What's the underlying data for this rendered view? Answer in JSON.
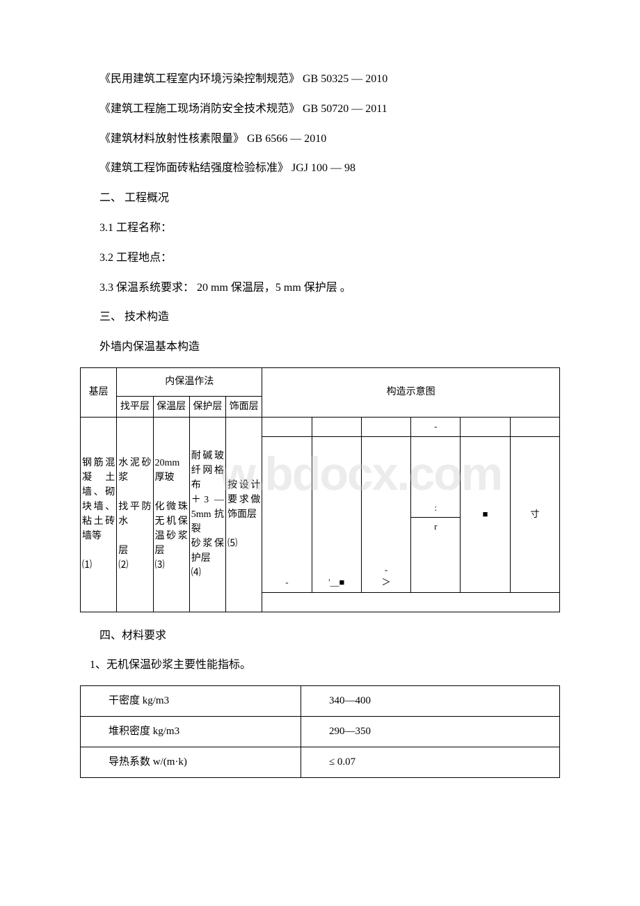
{
  "lines": {
    "l1": "《民用建筑工程室内环境污染控制规范》 GB 50325 — 2010",
    "l2": "《建筑工程施工现场消防安全技术规范》 GB 50720 — 2011",
    "l3": "《建筑材料放射性核素限量》 GB 6566 — 2010",
    "l4": "《建筑工程饰面砖粘结强度检验标准》 JGJ 100 — 98",
    "l5": "二、 工程概况",
    "l6": "3.1 工程名称：",
    "l7": "3.2 工程地点：",
    "l8": "3.3 保温系统要求： 20 mm 保温层，5 mm 保护层 。",
    "l9": "三、 技术构造",
    "l10": "外墙内保温基本构造",
    "l11": "四、材料要求",
    "l12": "1、无机保温砂浆主要性能指标。"
  },
  "structTable": {
    "hdr1": "基层",
    "hdr2": "内保温作法",
    "hdr3": "构造示意图",
    "sub1": "找平层",
    "sub2": "保温层",
    "sub3": "保护层",
    "sub4": "饰面层",
    "r1c1": "钢筋混凝土墙、砌块墙、粘土砖墙等\n\n⑴",
    "r1c2": "水泥砂浆\n\n找平防水\n\n层\n⑵",
    "r1c3": "20mm厚玻\n\n化微珠无机保温砂浆层\n⑶",
    "r1c4": "耐碱玻纤网格布\n＋3 — 5mm抗裂\n砂浆保护层\n⑷",
    "r1c5": "按设计要求做饰面层\n\n⑸",
    "diag": {
      "dash1": "-",
      "dash2": "-",
      "dash3": "-",
      "mark1": "'__■",
      "mark2": "＞",
      "mark3": ":",
      "mark4": "r",
      "mark5": "■",
      "mark6": "寸"
    }
  },
  "propsTable": {
    "r1k": "干密度 kg/m3",
    "r1v": "340—400",
    "r2k": "堆积密度 kg/m3",
    "r2v": "290—350",
    "r3k": "导热系数 w/(m·k)",
    "r3v": "≤ 0.07"
  },
  "watermark": "w.bdocx.com",
  "colors": {
    "text": "#000000",
    "border": "#000000",
    "background": "#ffffff",
    "watermark": "rgba(200,200,200,0.35)"
  }
}
